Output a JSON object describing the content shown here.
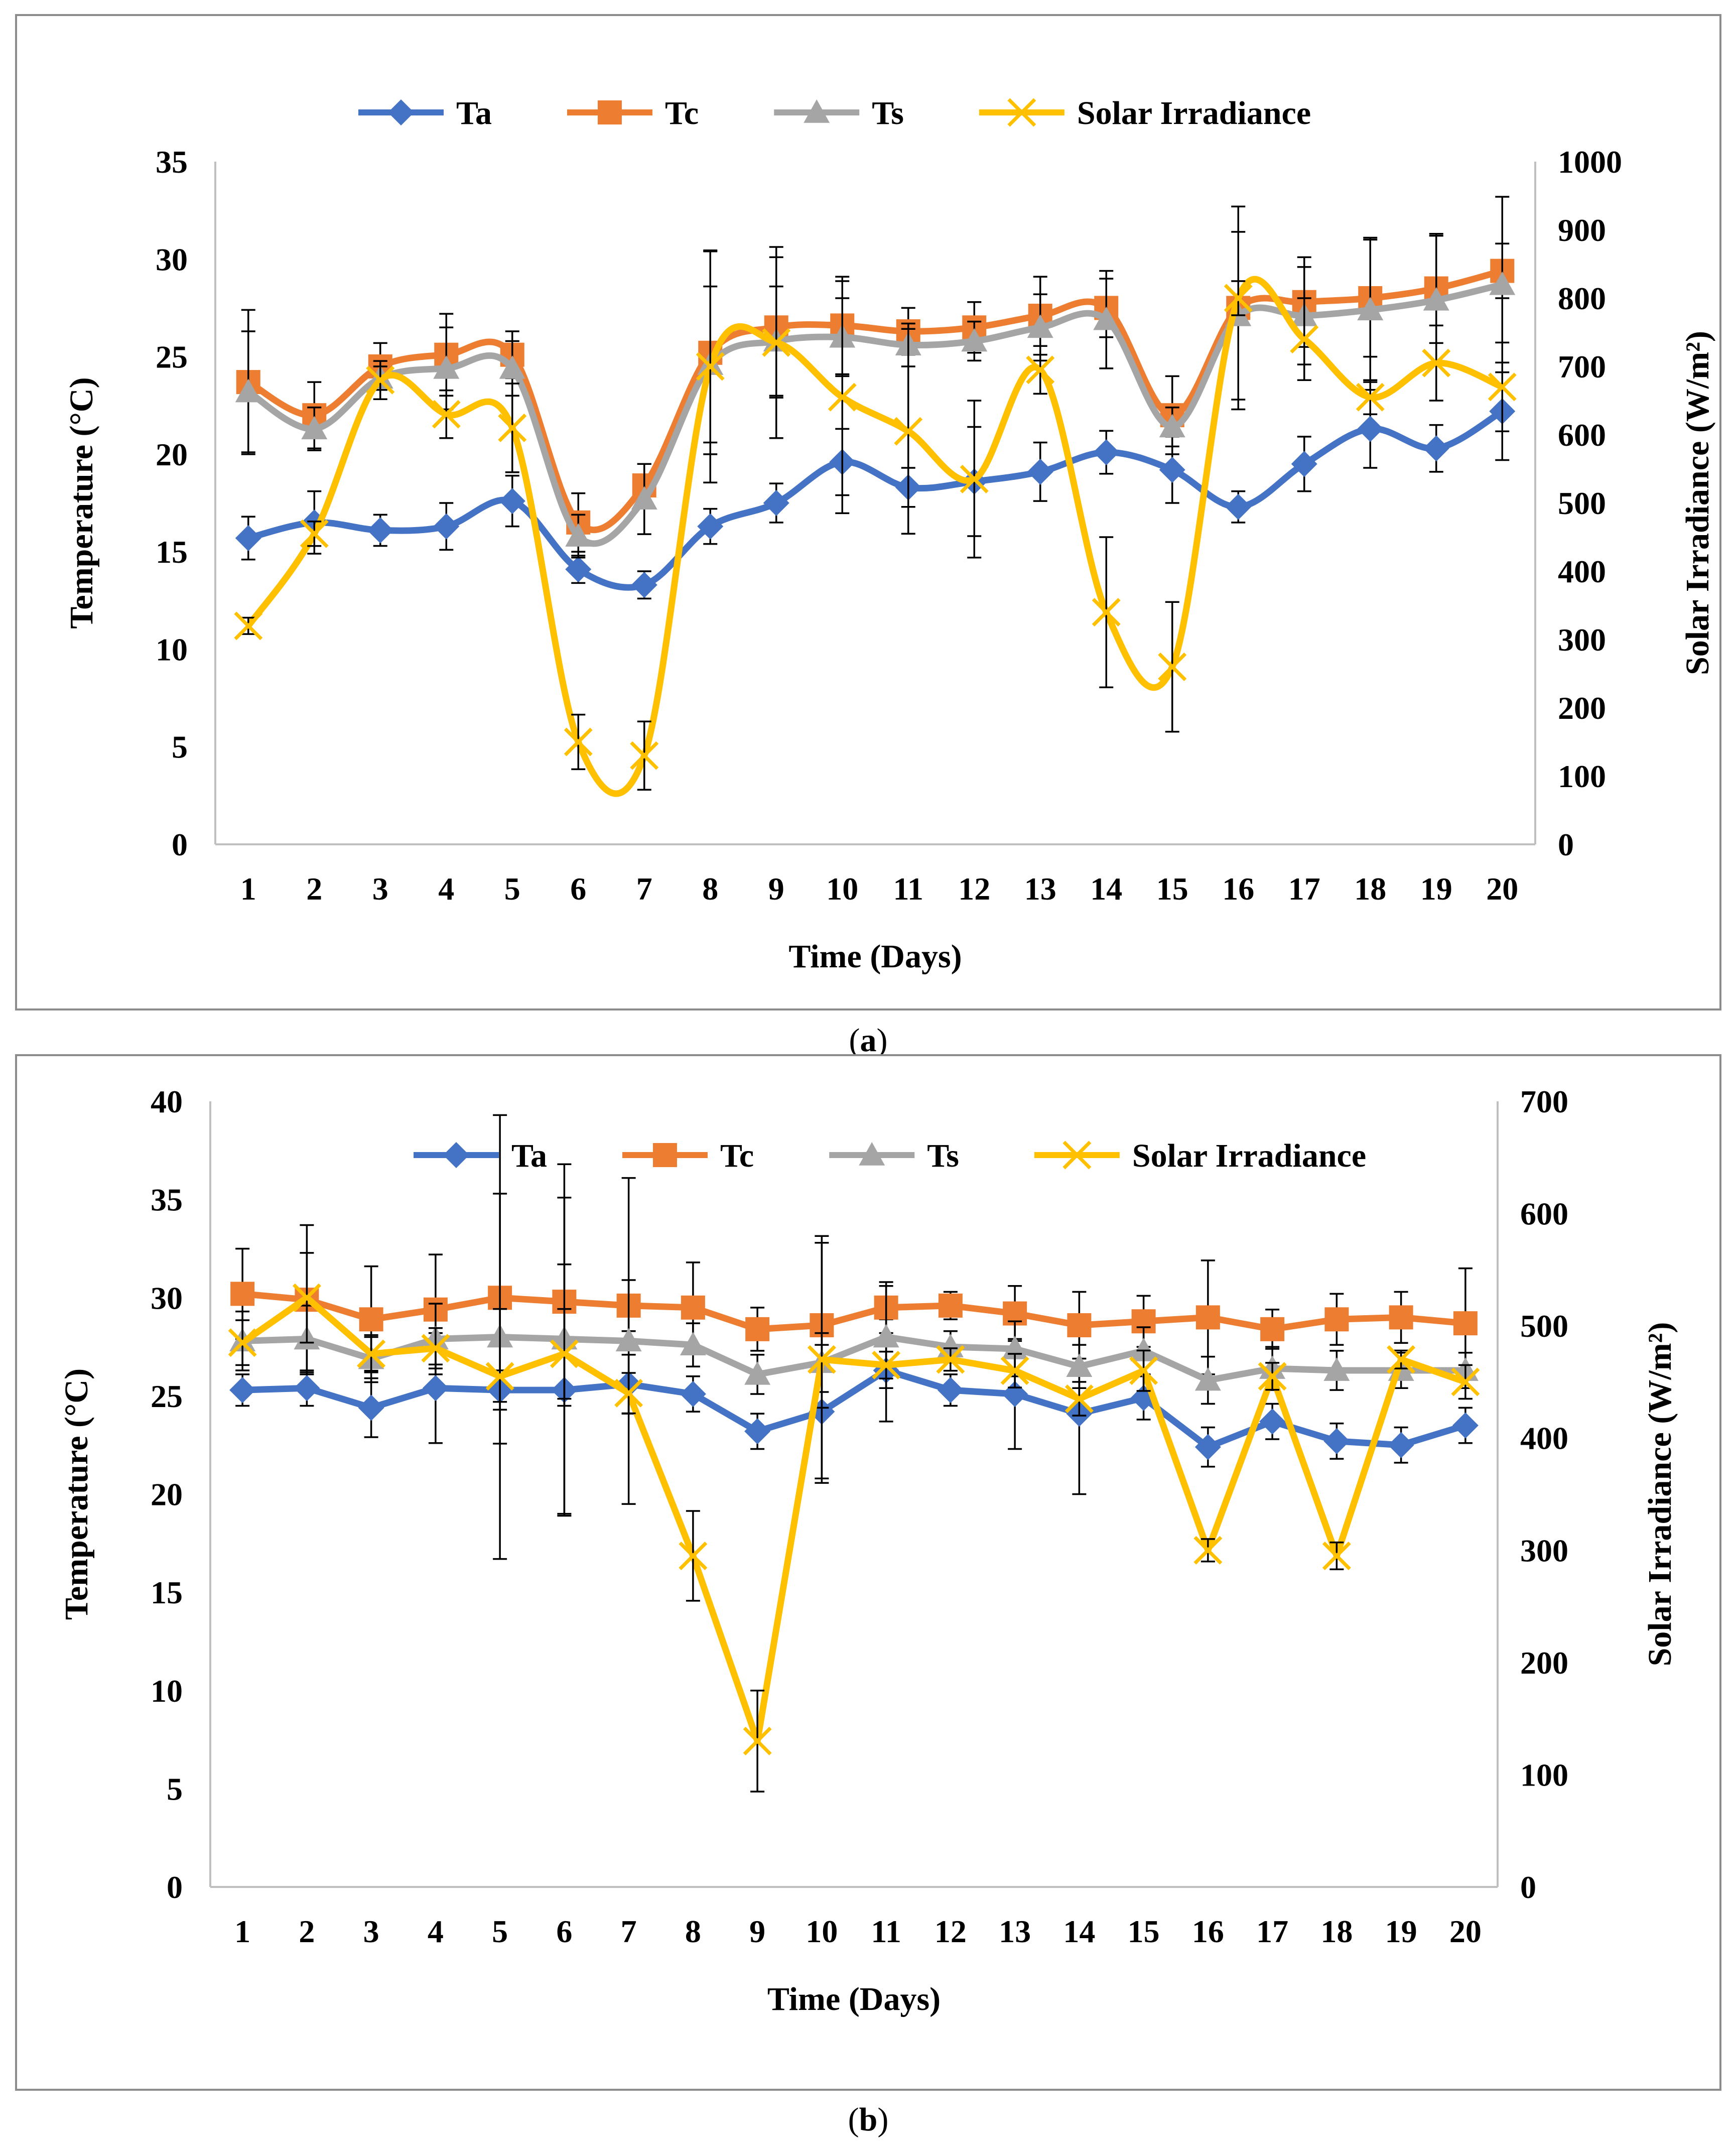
{
  "chart_data": [
    {
      "type": "line",
      "panel_label": "(a)",
      "caption_letter": "a",
      "x": [
        1,
        2,
        3,
        4,
        5,
        6,
        7,
        8,
        9,
        10,
        11,
        12,
        13,
        14,
        15,
        16,
        17,
        18,
        19,
        20
      ],
      "xlabel": "Time  (Days)",
      "ylabel": "Temperature (°C)",
      "y2label": "Solar Irradiance (W/m²)",
      "ylim": [
        0,
        35
      ],
      "yticks": [
        0,
        5,
        10,
        15,
        20,
        25,
        30,
        35
      ],
      "y2lim": [
        0,
        1000
      ],
      "y2ticks": [
        0,
        100,
        200,
        300,
        400,
        500,
        600,
        700,
        800,
        900,
        1000
      ],
      "smooth": true,
      "series": [
        {
          "name": "Ta",
          "axis": "left",
          "marker": "diamond",
          "color": "#4472C4",
          "values": [
            15.7,
            16.5,
            16.1,
            16.3,
            17.6,
            14.1,
            13.3,
            16.3,
            17.5,
            19.6,
            18.3,
            18.6,
            19.1,
            20.1,
            19.2,
            17.3,
            19.5,
            21.3,
            20.3,
            22.2
          ],
          "error": [
            1.1,
            1.6,
            0.8,
            1.2,
            1.3,
            0.7,
            0.7,
            0.9,
            1.0,
            1.7,
            1.0,
            2.8,
            1.5,
            1.1,
            1.7,
            0.8,
            1.4,
            2.0,
            1.2,
            2.5
          ]
        },
        {
          "name": "Tc",
          "axis": "left",
          "marker": "square",
          "color": "#ED7D31",
          "values": [
            23.7,
            22.0,
            24.5,
            25.1,
            25.1,
            16.5,
            18.4,
            25.2,
            26.5,
            26.6,
            26.3,
            26.5,
            27.1,
            27.5,
            22.0,
            27.5,
            27.8,
            28.0,
            28.5,
            29.4
          ],
          "error": [
            3.7,
            1.7,
            1.2,
            2.1,
            1.2,
            1.5,
            1.1,
            5.2,
            3.6,
            2.5,
            1.2,
            1.3,
            2.0,
            1.5,
            2.0,
            5.2,
            2.3,
            3.0,
            2.8,
            1.4
          ]
        },
        {
          "name": "Ts",
          "axis": "left",
          "marker": "triangle",
          "color": "#A5A5A5",
          "values": [
            23.2,
            21.3,
            23.9,
            24.4,
            24.4,
            15.8,
            17.7,
            24.6,
            25.8,
            26.0,
            25.6,
            25.8,
            26.5,
            26.9,
            21.4,
            27.1,
            27.1,
            27.4,
            27.9,
            28.7
          ],
          "error": [
            3.1,
            1.1,
            0.6,
            2.1,
            1.4,
            1.1,
            1.8,
            4.0,
            2.8,
            2.0,
            1.1,
            1.0,
            1.7,
            2.5,
            1.0,
            4.3,
            2.5,
            3.7,
            3.3,
            4.5
          ]
        },
        {
          "name": "Solar Irradiance",
          "axis": "right",
          "marker": "x",
          "color": "#FFC000",
          "values": [
            320,
            455,
            680,
            630,
            610,
            150,
            130,
            700,
            735,
            655,
            605,
            535,
            695,
            340,
            260,
            800,
            740,
            655,
            705,
            670
          ],
          "error": [
            12,
            18,
            28,
            35,
            65,
            40,
            50,
            170,
            140,
            170,
            150,
            115,
            35,
            110,
            95,
            25,
            60,
            25,
            55,
            65
          ]
        }
      ]
    },
    {
      "type": "line",
      "panel_label": "(b)",
      "caption_letter": "b",
      "x": [
        1,
        2,
        3,
        4,
        5,
        6,
        7,
        8,
        9,
        10,
        11,
        12,
        13,
        14,
        15,
        16,
        17,
        18,
        19,
        20
      ],
      "xlabel": "Time  (Days)",
      "ylabel": "Temperature (°C)",
      "y2label": "Solar Irradiance (W/m²)",
      "ylim": [
        0,
        40
      ],
      "yticks": [
        0,
        5,
        10,
        15,
        20,
        25,
        30,
        35,
        40
      ],
      "y2lim": [
        0,
        700
      ],
      "y2ticks": [
        0,
        100,
        200,
        300,
        400,
        500,
        600,
        700
      ],
      "smooth": false,
      "series": [
        {
          "name": "Ta",
          "axis": "left",
          "marker": "diamond",
          "color": "#4472C4",
          "values": [
            25.3,
            25.4,
            24.4,
            25.4,
            25.3,
            25.3,
            25.6,
            25.1,
            23.2,
            24.2,
            26.3,
            25.3,
            25.1,
            24.1,
            24.9,
            22.4,
            23.7,
            22.7,
            22.5,
            23.5
          ],
          "error": [
            0.8,
            0.9,
            1.5,
            2.8,
            1.0,
            6.4,
            1.5,
            0.9,
            0.9,
            3.4,
            2.6,
            0.8,
            2.8,
            4.1,
            1.1,
            1.0,
            0.9,
            0.9,
            0.9,
            0.9
          ]
        },
        {
          "name": "Tc",
          "axis": "left",
          "marker": "square",
          "color": "#ED7D31",
          "values": [
            30.2,
            29.9,
            28.9,
            29.4,
            30.0,
            29.8,
            29.6,
            29.5,
            28.4,
            28.6,
            29.5,
            29.6,
            29.2,
            28.6,
            28.8,
            29.0,
            28.4,
            28.9,
            29.0,
            28.7
          ],
          "error": [
            2.3,
            3.8,
            2.7,
            2.8,
            5.3,
            5.3,
            1.3,
            2.3,
            1.1,
            4.2,
            1.3,
            0.7,
            1.4,
            1.7,
            1.3,
            2.9,
            1.0,
            1.3,
            1.3,
            2.8
          ]
        },
        {
          "name": "Ts",
          "axis": "left",
          "marker": "triangle",
          "color": "#A5A5A5",
          "values": [
            27.8,
            27.9,
            26.9,
            27.9,
            28.0,
            27.9,
            27.8,
            27.6,
            26.1,
            26.7,
            28.0,
            27.5,
            27.4,
            26.5,
            27.3,
            25.8,
            26.4,
            26.3,
            26.3,
            26.3
          ],
          "error": [
            1.5,
            1.7,
            1.2,
            1.8,
            11.3,
            8.9,
            8.3,
            1.1,
            1.0,
            1.5,
            2.6,
            0.8,
            1.4,
            1.1,
            1.2,
            1.2,
            1.1,
            1.0,
            0.9,
            0.9
          ]
        },
        {
          "name": "Solar Irradiance",
          "axis": "right",
          "marker": "x",
          "color": "#FFC000",
          "values": [
            485,
            525,
            475,
            480,
            455,
            475,
            440,
            295,
            130,
            470,
            465,
            470,
            460,
            435,
            460,
            300,
            455,
            295,
            470,
            450
          ],
          "error": [
            20,
            40,
            15,
            18,
            60,
            40,
            18,
            40,
            45,
            110,
            12,
            10,
            15,
            15,
            18,
            10,
            12,
            12,
            8,
            15
          ]
        }
      ]
    }
  ]
}
